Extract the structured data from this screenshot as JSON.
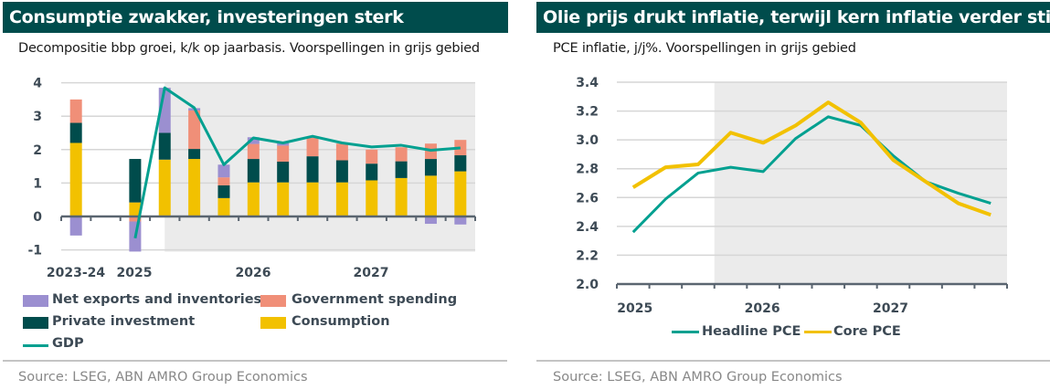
{
  "left_panel": {
    "title": "Consumptie zwakker, investeringen sterk",
    "subtitle": "Decompositie bbp groei, k/k op jaarbasis. Voorspellingen in grijs gebied",
    "source": "Source: LSEG, ABN AMRO Group Economics",
    "legend": [
      {
        "label": "Net exports and inventories",
        "color": "#9b8fd0",
        "type": "bar"
      },
      {
        "label": "Government spending",
        "color": "#f08f78",
        "type": "bar"
      },
      {
        "label": "Private investment",
        "color": "#004c4c",
        "type": "bar"
      },
      {
        "label": "Consumption",
        "color": "#f2c100",
        "type": "bar"
      },
      {
        "label": "GDP",
        "color": "#00a090",
        "type": "line"
      }
    ]
  },
  "right_panel": {
    "title": "Olie prijs drukt inflatie, terwijl kern inflatie verder stijgt",
    "subtitle": "PCE inflatie, j/j%.  Voorspellingen in grijs gebied",
    "source": "Source: LSEG, ABN AMRO Group Economics",
    "legend": [
      {
        "label": "Headline PCE",
        "color": "#00a090"
      },
      {
        "label": "Core PCE",
        "color": "#f2c100"
      }
    ]
  },
  "chart_data": [
    {
      "type": "bar",
      "stacked": true,
      "title": "Consumptie zwakker, investeringen sterk",
      "subtitle": "Decompositie bbp groei, k/k op jaarbasis. Voorspellingen in grijs gebied",
      "xlabel": "",
      "ylabel": "",
      "ylim": [
        -1,
        4
      ],
      "yticks": [
        -1,
        0,
        1,
        2,
        3,
        4
      ],
      "x_tick_labels": [
        "2023-24",
        "2025",
        "2026",
        "2027"
      ],
      "categories": [
        "2023-24",
        "",
        "2025Q1",
        "2025Q2",
        "2025Q3",
        "2025Q4",
        "2026Q1",
        "2026Q2",
        "2026Q3",
        "2026Q4",
        "2027Q1",
        "2027Q2",
        "2027Q3",
        "2027Q4"
      ],
      "forecast_start_index": 3.5,
      "grid": true,
      "series": [
        {
          "name": "Consumption",
          "color": "#f2c100",
          "values": [
            2.2,
            null,
            0.42,
            1.7,
            1.72,
            0.55,
            1.02,
            1.02,
            1.02,
            1.02,
            1.08,
            1.15,
            1.22,
            1.35
          ]
        },
        {
          "name": "Private investment",
          "color": "#004c4c",
          "values": [
            0.6,
            null,
            1.3,
            0.8,
            0.3,
            0.38,
            0.7,
            0.62,
            0.78,
            0.66,
            0.5,
            0.5,
            0.5,
            0.48
          ]
        },
        {
          "name": "Government spending",
          "color": "#f08f78",
          "values": [
            0.7,
            null,
            -0.15,
            0.0,
            1.15,
            0.24,
            0.45,
            0.48,
            0.55,
            0.5,
            0.42,
            0.42,
            0.46,
            0.46
          ]
        },
        {
          "name": "Net exports and inventories",
          "color": "#9b8fd0",
          "values": [
            -0.57,
            null,
            -0.9,
            1.35,
            0.07,
            0.38,
            0.2,
            0.08,
            0.03,
            0.0,
            0.0,
            0.0,
            -0.22,
            -0.24
          ]
        }
      ],
      "line": {
        "name": "GDP",
        "color": "#00a090",
        "values": [
          null,
          null,
          -0.65,
          3.85,
          3.25,
          1.55,
          2.35,
          2.2,
          2.4,
          2.2,
          2.08,
          2.13,
          1.98,
          2.05
        ]
      },
      "legend_position": "bottom"
    },
    {
      "type": "line",
      "title": "Olie prijs drukt inflatie, terwijl kern inflatie verder stijgt",
      "subtitle": "PCE inflatie, j/j%.  Voorspellingen in grijs gebied",
      "xlabel": "",
      "ylabel": "",
      "ylim": [
        2.0,
        3.4
      ],
      "yticks": [
        2.0,
        2.2,
        2.4,
        2.6,
        2.8,
        3.0,
        3.2,
        3.4
      ],
      "x_tick_labels": [
        "2025",
        "2026",
        "2027"
      ],
      "x": [
        "2025Q1",
        "2025Q2",
        "2025Q3",
        "2025Q4",
        "2026Q1",
        "2026Q2",
        "2026Q3",
        "2026Q4",
        "2027Q1",
        "2027Q2",
        "2027Q3",
        "2027Q4"
      ],
      "forecast_start_index": 2.5,
      "grid": true,
      "series": [
        {
          "name": "Headline PCE",
          "color": "#00a090",
          "values": [
            2.36,
            2.59,
            2.77,
            2.81,
            2.78,
            3.01,
            3.16,
            3.1,
            2.89,
            2.71,
            2.63,
            2.56
          ]
        },
        {
          "name": "Core PCE",
          "color": "#f2c100",
          "values": [
            2.67,
            2.81,
            2.83,
            3.05,
            2.98,
            3.1,
            3.26,
            3.12,
            2.86,
            2.71,
            2.56,
            2.48
          ]
        }
      ],
      "legend_position": "bottom"
    }
  ]
}
